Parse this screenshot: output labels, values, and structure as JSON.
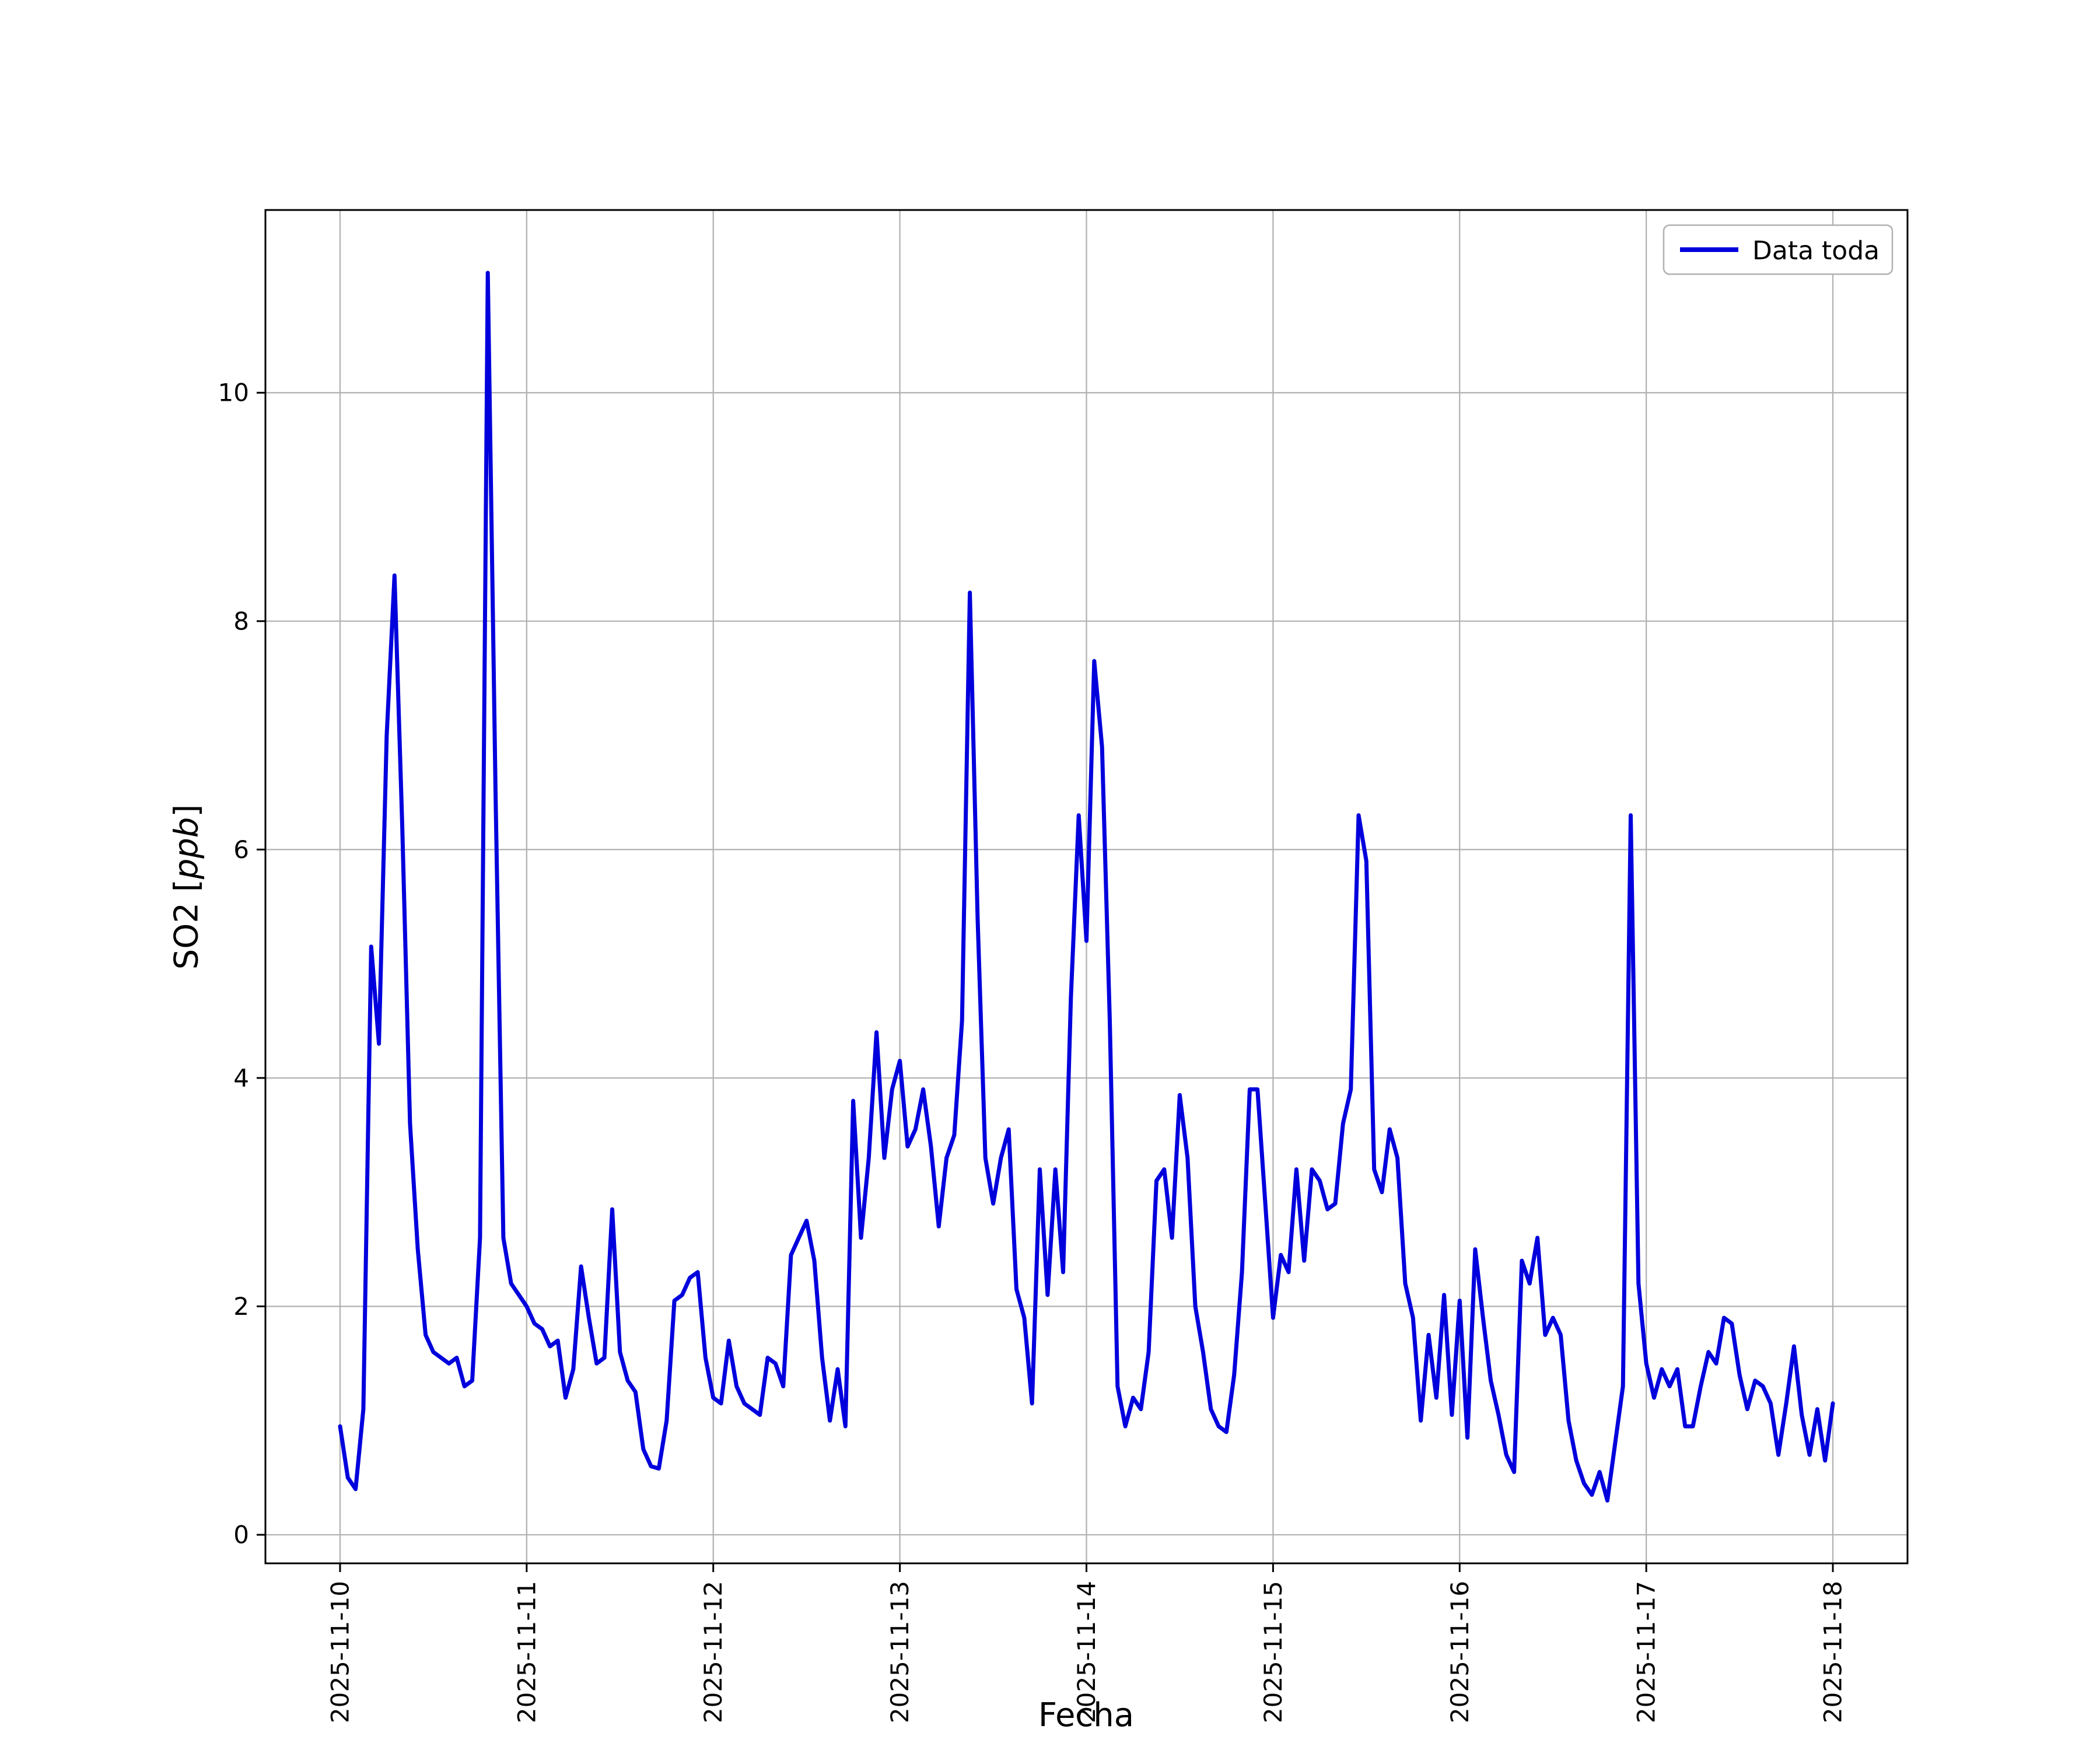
{
  "figure": {
    "background": "#ffffff",
    "ylabel_prefix": "SO2 [",
    "ylabel_italic": "ppb",
    "ylabel_suffix": "]"
  },
  "chart_data": {
    "type": "line",
    "title": "",
    "xlabel": "Fecha",
    "ylabel": "SO2 [ppb]",
    "grid": true,
    "legend_position": "upper right",
    "colors": {
      "series": "#0000dd",
      "grid": "#b0b0b0",
      "spine": "#000000",
      "legend_border": "#b0b0b0",
      "background": "#ffffff"
    },
    "xlim": [
      -0.4,
      8.4
    ],
    "ylim": [
      -0.25,
      11.6
    ],
    "y_ticks": [
      0,
      2,
      4,
      6,
      8,
      10
    ],
    "x_ticks": [
      {
        "pos": 0,
        "label": "2025-11-10"
      },
      {
        "pos": 1,
        "label": "2025-11-11"
      },
      {
        "pos": 2,
        "label": "2025-11-12"
      },
      {
        "pos": 3,
        "label": "2025-11-13"
      },
      {
        "pos": 4,
        "label": "2025-11-14"
      },
      {
        "pos": 5,
        "label": "2025-11-15"
      },
      {
        "pos": 6,
        "label": "2025-11-16"
      },
      {
        "pos": 7,
        "label": "2025-11-17"
      },
      {
        "pos": 8,
        "label": "2025-11-18"
      }
    ],
    "x_unit": "days since 2025-11-10 00:00 (hourly samples)",
    "series": [
      {
        "name": "Data toda",
        "color": "#0000dd",
        "x_start_day": 0,
        "x_step_days": 0.0416666667,
        "y": [
          0.95,
          0.5,
          0.4,
          1.1,
          5.15,
          4.3,
          7.0,
          8.4,
          6.2,
          3.6,
          2.5,
          1.75,
          1.6,
          1.55,
          1.5,
          1.55,
          1.3,
          1.35,
          2.6,
          11.05,
          6.5,
          2.6,
          2.2,
          2.1,
          2.0,
          1.85,
          1.8,
          1.65,
          1.7,
          1.2,
          1.45,
          2.35,
          1.9,
          1.5,
          1.55,
          2.85,
          1.6,
          1.35,
          1.25,
          0.75,
          0.6,
          0.58,
          1.0,
          2.05,
          2.1,
          2.25,
          2.3,
          1.55,
          1.2,
          1.15,
          1.7,
          1.3,
          1.15,
          1.1,
          1.05,
          1.55,
          1.5,
          1.3,
          2.45,
          2.6,
          2.75,
          2.4,
          1.55,
          1.0,
          1.45,
          0.95,
          3.8,
          2.6,
          3.3,
          4.4,
          3.3,
          3.9,
          4.15,
          3.4,
          3.55,
          3.9,
          3.4,
          2.7,
          3.3,
          3.5,
          4.5,
          8.25,
          5.4,
          3.3,
          2.9,
          3.3,
          3.55,
          2.15,
          1.9,
          1.15,
          3.2,
          2.1,
          3.2,
          2.3,
          4.7,
          6.3,
          5.2,
          7.65,
          6.9,
          4.5,
          1.3,
          0.95,
          1.2,
          1.1,
          1.6,
          3.1,
          3.2,
          2.6,
          3.85,
          3.3,
          2.0,
          1.6,
          1.1,
          0.95,
          0.9,
          1.4,
          2.3,
          3.9,
          3.9,
          2.9,
          1.9,
          2.45,
          2.3,
          3.2,
          2.4,
          3.2,
          3.1,
          2.85,
          2.9,
          3.6,
          3.9,
          6.3,
          5.9,
          3.2,
          3.0,
          3.55,
          3.3,
          2.2,
          1.9,
          1.0,
          1.75,
          1.2,
          2.1,
          1.05,
          2.05,
          0.85,
          2.5,
          1.9,
          1.35,
          1.05,
          0.7,
          0.55,
          2.4,
          2.2,
          2.6,
          1.75,
          1.9,
          1.75,
          1.0,
          0.65,
          0.45,
          0.35,
          0.55,
          0.3,
          0.8,
          1.3,
          6.3,
          2.2,
          1.5,
          1.2,
          1.45,
          1.3,
          1.45,
          0.95,
          0.95,
          1.3,
          1.6,
          1.5,
          1.9,
          1.85,
          1.4,
          1.1,
          1.35,
          1.3,
          1.15,
          0.7,
          1.15,
          1.65,
          1.05,
          0.7,
          1.1,
          0.65,
          1.15
        ]
      }
    ]
  }
}
